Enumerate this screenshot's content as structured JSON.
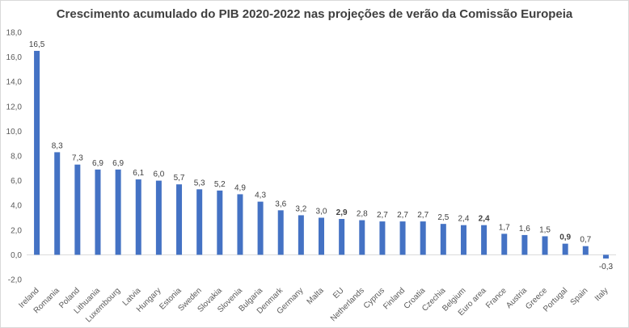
{
  "chart_data": {
    "type": "bar",
    "title": "Crescimento acumulado  do PIB 2020-2022 nas projeções de verão da Comissão  Europeia",
    "xlabel": "",
    "ylabel": "",
    "ylim": [
      -2,
      18
    ],
    "yticks": [
      "18,0",
      "16,0",
      "14,0",
      "12,0",
      "10,0",
      "8,0",
      "6,0",
      "4,0",
      "2,0",
      "0,0",
      "-2,0"
    ],
    "ytick_values": [
      18,
      16,
      14,
      12,
      10,
      8,
      6,
      4,
      2,
      0,
      -2
    ],
    "grid": false,
    "legend": "none",
    "bar_color": "#4472C4",
    "categories": [
      "Ireland",
      "Romania",
      "Poland",
      "Lithuania",
      "Luxembourg",
      "Latvia",
      "Hungary",
      "Estonia",
      "Sweden",
      "Slovakia",
      "Slovenia",
      "Bulgaria",
      "Denmark",
      "Germany",
      "Malta",
      "EU",
      "Netherlands",
      "Cyprus",
      "Finland",
      "Croatia",
      "Czechia",
      "Belgium",
      "Euro area",
      "France",
      "Austria",
      "Greece",
      "Portugal",
      "Spain",
      "Italy"
    ],
    "values": [
      16.5,
      8.3,
      7.3,
      6.9,
      6.9,
      6.1,
      6.0,
      5.7,
      5.3,
      5.2,
      4.9,
      4.3,
      3.6,
      3.2,
      3.0,
      2.9,
      2.8,
      2.7,
      2.7,
      2.7,
      2.5,
      2.4,
      2.4,
      1.7,
      1.6,
      1.5,
      0.9,
      0.7,
      -0.3
    ],
    "data_labels": [
      "16,5",
      "8,3",
      "7,3",
      "6,9",
      "6,9",
      "6,1",
      "6,0",
      "5,7",
      "5,3",
      "5,2",
      "4,9",
      "4,3",
      "3,6",
      "3,2",
      "3,0",
      "2,9",
      "2,8",
      "2,7",
      "2,7",
      "2,7",
      "2,5",
      "2,4",
      "2,4",
      "1,7",
      "1,6",
      "1,5",
      "0,9",
      "0,7",
      "-0,3"
    ],
    "highlights": {
      "EU": "#2E75B6",
      "Euro area": "#2E75B6",
      "Portugal": "#C00000"
    }
  }
}
